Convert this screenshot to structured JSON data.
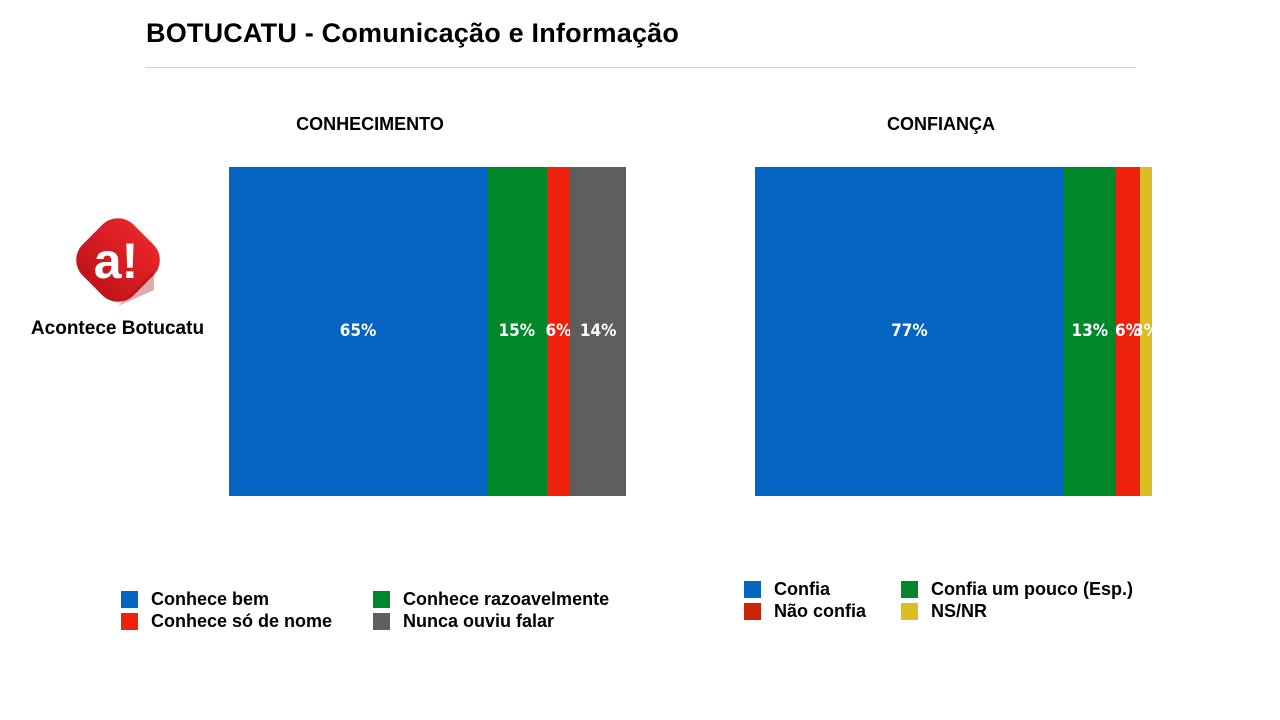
{
  "title": "BOTUCATU - Comunicação e Informação",
  "logo": {
    "icon": "acontece-logo-icon",
    "glyph": "a!",
    "label": "Acontece Botucatu"
  },
  "colors": {
    "blue": "#0563c1",
    "green": "#00882b",
    "red": "#ee220c",
    "gray": "#5e5e5e",
    "yellow": "#dcbd23",
    "dark_red": "#c82506"
  },
  "chart_data": [
    {
      "type": "bar",
      "orientation": "stacked-100",
      "title": "CONHECIMENTO",
      "series": [
        {
          "name": "Conhece bem",
          "value": 65,
          "label": "65%",
          "color": "#0563c1"
        },
        {
          "name": "Conhece razoavelmente",
          "value": 15,
          "label": "15%",
          "color": "#00882b"
        },
        {
          "name": "Conhece só de nome",
          "value": 6,
          "label": "6%",
          "color": "#ee220c"
        },
        {
          "name": "Nunca ouviu falar",
          "value": 14,
          "label": "14%",
          "color": "#5e5e5e"
        }
      ],
      "legend_order": [
        "Conhece bem",
        "Conhece razoavelmente",
        "Conhece só de nome",
        "Nunca ouviu falar"
      ]
    },
    {
      "type": "bar",
      "orientation": "stacked-100",
      "title": "CONFIANÇA",
      "series": [
        {
          "name": "Confia",
          "value": 77,
          "label": "77%",
          "color": "#0563c1"
        },
        {
          "name": "Confia um pouco (Esp.)",
          "value": 13,
          "label": "13%",
          "color": "#00882b"
        },
        {
          "name": "Não confia",
          "value": 6,
          "label": "6%",
          "color": "#c82506"
        },
        {
          "name": "NS/NR",
          "value": 3,
          "label": "3%",
          "color": "#dcbd23"
        }
      ],
      "segment_colors": [
        "#0563c1",
        "#00882b",
        "#ee220c",
        "#dcbd23"
      ],
      "legend_order": [
        "Confia",
        "Confia um pouco (Esp.)",
        "Não confia",
        "NS/NR"
      ]
    }
  ]
}
